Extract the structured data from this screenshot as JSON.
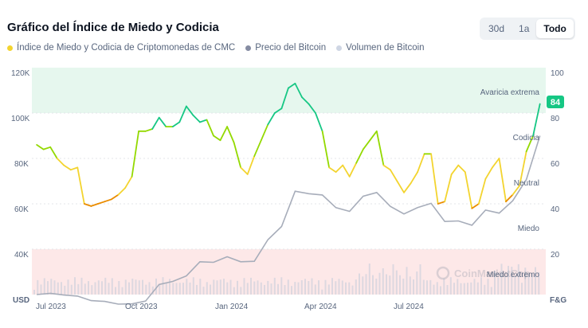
{
  "header": {
    "title": "Gráfico del Índice de Miedo y Codicia",
    "tabs": [
      {
        "label": "30d",
        "active": false
      },
      {
        "label": "1a",
        "active": false
      },
      {
        "label": "Todo",
        "active": true
      }
    ]
  },
  "colors": {
    "greed_zone": "#e6f7ee",
    "fear_zone": "#fde8e8",
    "price_line": "#a7adba",
    "volume": "#ddd8e0",
    "extreme_greed": "#16c784",
    "greed": "#93d900",
    "neutral": "#f3d42f",
    "fear": "#ea8c00",
    "badge": "#16c784"
  },
  "chart_data": {
    "type": "line",
    "legend": [
      {
        "name": "Índice de Miedo y Codicia de Criptomonedas de CMC",
        "color": "#f3d42f"
      },
      {
        "name": "Precio del Bitcoin",
        "color": "#858ca2"
      },
      {
        "name": "Volumen de Bitcoin",
        "color": "#cfd6e4"
      }
    ],
    "left_axis": {
      "label": "USD",
      "ticks": [
        "120K",
        "100K",
        "80K",
        "60K",
        "40K"
      ],
      "range": [
        30000,
        120000
      ]
    },
    "right_axis": {
      "label": "F&G",
      "ticks": [
        "100",
        "80",
        "60",
        "40",
        "20"
      ],
      "range": [
        0,
        100
      ]
    },
    "x_ticks": [
      "Jul 2023",
      "Oct 2023",
      "Jan 2024",
      "Apr 2024",
      "Jul 2024"
    ],
    "zones": [
      "Avaricia extrema",
      "Codicia",
      "Neutral",
      "Miedo",
      "Miedo extremo"
    ],
    "current_value": "84",
    "watermark": "CoinMarketCap",
    "fear_greed": {
      "x": [
        "2023-06-20",
        "2023-06-27",
        "2023-07-04",
        "2023-07-11",
        "2023-07-18",
        "2023-07-25",
        "2023-08-01",
        "2023-08-08",
        "2023-08-15",
        "2023-08-22",
        "2023-08-29",
        "2023-09-05",
        "2023-09-12",
        "2023-09-19",
        "2023-09-26",
        "2023-10-03",
        "2023-10-10",
        "2023-10-17",
        "2023-10-24",
        "2023-10-31",
        "2023-11-07",
        "2023-11-14",
        "2023-11-21",
        "2023-11-28",
        "2023-12-05",
        "2023-12-12",
        "2023-12-19",
        "2023-12-26",
        "2024-01-02",
        "2024-01-09",
        "2024-01-16",
        "2024-01-23",
        "2024-01-30",
        "2024-02-06",
        "2024-02-13",
        "2024-02-20",
        "2024-02-27",
        "2024-03-05",
        "2024-03-12",
        "2024-03-19",
        "2024-03-26",
        "2024-04-02",
        "2024-04-09",
        "2024-04-16",
        "2024-04-23",
        "2024-04-30",
        "2024-05-07",
        "2024-05-14",
        "2024-05-21",
        "2024-05-28",
        "2024-06-04",
        "2024-06-11",
        "2024-06-18",
        "2024-06-25",
        "2024-07-02",
        "2024-07-09",
        "2024-07-16",
        "2024-07-23",
        "2024-07-30",
        "2024-08-06",
        "2024-08-13",
        "2024-08-20",
        "2024-08-27",
        "2024-09-03",
        "2024-09-10",
        "2024-09-17",
        "2024-09-24",
        "2024-10-01",
        "2024-10-08",
        "2024-10-15",
        "2024-10-22",
        "2024-10-29",
        "2024-11-05",
        "2024-11-12",
        "2024-11-19"
      ],
      "values": [
        66,
        64,
        65,
        60,
        57,
        55,
        56,
        40,
        39,
        40,
        41,
        42,
        44,
        47,
        52,
        72,
        72,
        73,
        78,
        74,
        74,
        76,
        83,
        79,
        76,
        77,
        70,
        68,
        74,
        67,
        56,
        53,
        61,
        68,
        75,
        80,
        82,
        91,
        93,
        87,
        84,
        80,
        72,
        56,
        54,
        57,
        52,
        58,
        64,
        68,
        72,
        57,
        55,
        50,
        45,
        49,
        54,
        62,
        62,
        40,
        41,
        53,
        57,
        54,
        38,
        40,
        51,
        56,
        60,
        41,
        44,
        48,
        63,
        70,
        84
      ]
    },
    "btc_price": {
      "x": [
        "2023-06-20",
        "2023-07-04",
        "2023-07-18",
        "2023-08-01",
        "2023-08-15",
        "2023-08-29",
        "2023-09-12",
        "2023-09-26",
        "2023-10-10",
        "2023-10-24",
        "2023-11-07",
        "2023-11-21",
        "2023-12-05",
        "2023-12-19",
        "2024-01-02",
        "2024-01-16",
        "2024-01-30",
        "2024-02-13",
        "2024-02-27",
        "2024-03-12",
        "2024-03-26",
        "2024-04-09",
        "2024-04-23",
        "2024-05-07",
        "2024-05-21",
        "2024-06-04",
        "2024-06-18",
        "2024-07-02",
        "2024-07-16",
        "2024-07-30",
        "2024-08-13",
        "2024-08-27",
        "2024-09-10",
        "2024-09-24",
        "2024-10-08",
        "2024-10-22",
        "2024-11-05",
        "2024-11-19"
      ],
      "values": [
        30000,
        30500,
        29800,
        29400,
        27600,
        27300,
        26200,
        26300,
        27400,
        34000,
        35200,
        37400,
        43000,
        42800,
        45000,
        43000,
        43200,
        51800,
        57000,
        71000,
        70000,
        69500,
        64500,
        63000,
        69000,
        70500,
        65000,
        62000,
        64500,
        66200,
        59000,
        59200,
        57500,
        63500,
        62300,
        67200,
        75600,
        93000
      ]
    }
  }
}
